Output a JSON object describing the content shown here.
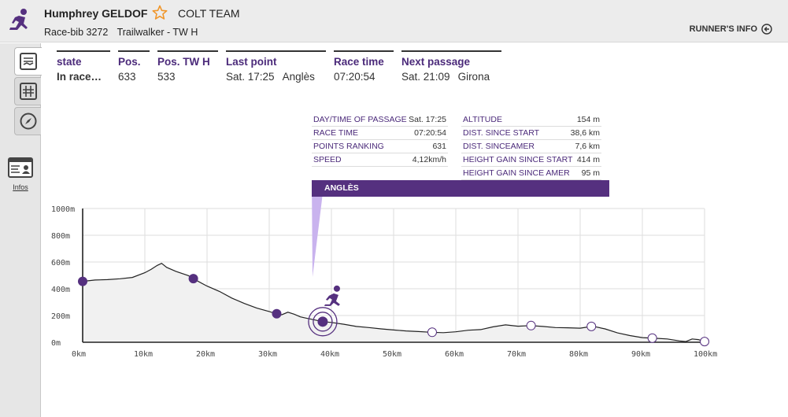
{
  "header": {
    "runner_name": "Humphrey GELDOF",
    "team": "COLT TEAM",
    "race_bib": "Race-bib 3272",
    "race": "Trailwalker - TW H",
    "runners_info_label": "RUNNER'S INFO",
    "icons": {
      "logo": "runner-logo-icon",
      "favorite": "star-icon",
      "info": "arrow-left-circle-icon"
    }
  },
  "sidebar": {
    "tabs": [
      {
        "name": "summary-tab",
        "icon": "chart-list-icon"
      },
      {
        "name": "grid-tab",
        "icon": "grid-icon"
      },
      {
        "name": "compass-tab",
        "icon": "compass-icon"
      }
    ],
    "infos_label": "Infos"
  },
  "stats": [
    {
      "head": "state",
      "value": "In race…",
      "bold": true
    },
    {
      "head": "Pos.",
      "value": "633"
    },
    {
      "head": "Pos. TW H",
      "value": "533"
    },
    {
      "head": "Last point",
      "value": "Sat. 17:25",
      "value2": "Anglès"
    },
    {
      "head": "Race time",
      "value": "07:20:54"
    },
    {
      "head": "Next passage",
      "value": "Sat. 21:09",
      "value2": "Girona"
    }
  ],
  "passage_info": {
    "left": [
      {
        "label": "DAY/TIME OF PASSAGE",
        "value": "Sat. 17:25"
      },
      {
        "label": "RACE TIME",
        "value": "07:20:54"
      },
      {
        "label": "POINTS RANKING",
        "value": "631"
      },
      {
        "label": "SPEED",
        "value": "4,12km/h"
      }
    ],
    "right": [
      {
        "label": "ALTITUDE",
        "value": "154 m"
      },
      {
        "label": "DIST. SINCE START",
        "value": "38,6 km"
      },
      {
        "label": "DIST. SINCEAMER",
        "value": "7,6 km"
      },
      {
        "label": "HEIGHT GAIN SINCE START",
        "value": "414 m"
      },
      {
        "label": "HEIGHT GAIN SINCE AMER",
        "value": "95 m"
      }
    ],
    "point_name": "ANGLÈS"
  },
  "colors": {
    "accent": "#55307f",
    "light_accent": "#c9b3ee",
    "profile_fill": "#f1f1f1"
  },
  "chart_data": {
    "type": "area",
    "title": "",
    "xlabel": "",
    "ylabel": "",
    "x_ticks": [
      "0km",
      "10km",
      "20km",
      "30km",
      "40km",
      "50km",
      "60km",
      "70km",
      "80km",
      "90km",
      "100km"
    ],
    "y_ticks": [
      "0m",
      "200m",
      "400m",
      "600m",
      "800m",
      "1000m"
    ],
    "xlim": [
      0,
      100
    ],
    "ylim": [
      0,
      1000
    ],
    "grid": true,
    "profile": {
      "x": [
        0,
        2,
        4,
        6,
        8,
        10,
        11,
        12,
        12.7,
        13.5,
        15,
        17,
        18,
        20,
        22,
        24,
        26,
        28,
        30,
        31,
        32,
        33,
        34,
        35,
        36,
        37,
        38.6,
        40,
        42,
        44,
        46,
        48,
        50,
        52,
        54,
        56,
        58,
        60,
        62,
        64,
        66,
        68,
        70,
        72,
        74,
        76,
        78,
        80,
        82,
        84,
        86,
        88,
        90,
        92,
        94,
        96,
        97,
        98,
        99,
        100
      ],
      "y": [
        455,
        465,
        468,
        475,
        485,
        520,
        545,
        575,
        590,
        560,
        530,
        498,
        470,
        420,
        380,
        330,
        290,
        255,
        230,
        215,
        205,
        225,
        210,
        190,
        180,
        170,
        154,
        148,
        135,
        118,
        110,
        100,
        92,
        85,
        80,
        75,
        72,
        78,
        90,
        95,
        115,
        130,
        120,
        125,
        118,
        110,
        108,
        105,
        120,
        100,
        70,
        50,
        35,
        30,
        25,
        10,
        5,
        25,
        20,
        5
      ]
    },
    "passed_points_km": [
      0,
      17.8,
      31.2
    ],
    "current_point_km": 38.6,
    "future_points_km": [
      56.2,
      72.1,
      81.8,
      91.6,
      100
    ]
  }
}
